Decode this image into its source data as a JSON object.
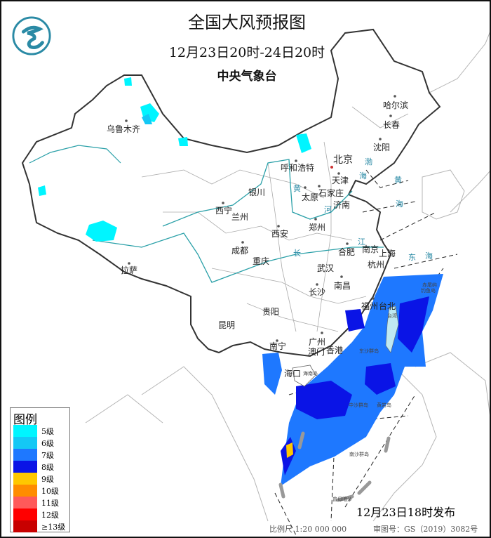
{
  "header": {
    "title": "全国大风预报图",
    "period": "12月23日20时-24日20时",
    "issuer": "中央气象台",
    "logo": "cma-dragon-logo"
  },
  "legend": {
    "title": "图例",
    "items": [
      {
        "label": "5级",
        "color": "#00f5ff"
      },
      {
        "label": "6级",
        "color": "#14c8f5"
      },
      {
        "label": "7级",
        "color": "#1e78ff"
      },
      {
        "label": "8级",
        "color": "#0a14e6"
      },
      {
        "label": "9级",
        "color": "#ffc800"
      },
      {
        "label": "10级",
        "color": "#ff8c00"
      },
      {
        "label": "11级",
        "color": "#ff5a5a"
      },
      {
        "label": "12级",
        "color": "#ff0000"
      },
      {
        "label": "≥13级",
        "color": "#c80000"
      }
    ]
  },
  "cities": [
    "乌鲁木齐",
    "哈尔滨",
    "长春",
    "沈阳",
    "北京",
    "呼和浩特",
    "天津",
    "石家庄",
    "太原",
    "济南",
    "银川",
    "西宁",
    "兰州",
    "西安",
    "郑州",
    "拉萨",
    "成都",
    "重庆",
    "合肥",
    "南京",
    "上海",
    "杭州",
    "武汉",
    "长沙",
    "南昌",
    "贵阳",
    "福州",
    "台北",
    "昆明",
    "南宁",
    "广州",
    "澳门",
    "香港",
    "海口"
  ],
  "seas": [
    "渤",
    "海",
    "黄",
    "海",
    "东",
    "海",
    "长",
    "江",
    "黄",
    "河"
  ],
  "islands": [
    "台湾",
    "东沙群岛",
    "中沙群岛",
    "黄岩岛",
    "南沙群岛",
    "曾母暗沙",
    "钓鱼岛",
    "赤尾屿",
    "海南岛"
  ],
  "footer": {
    "issued": "12月23日18时发布",
    "scale": "比例尺 1:20 000 000",
    "review": "审图号：GS（2019）3082号"
  }
}
